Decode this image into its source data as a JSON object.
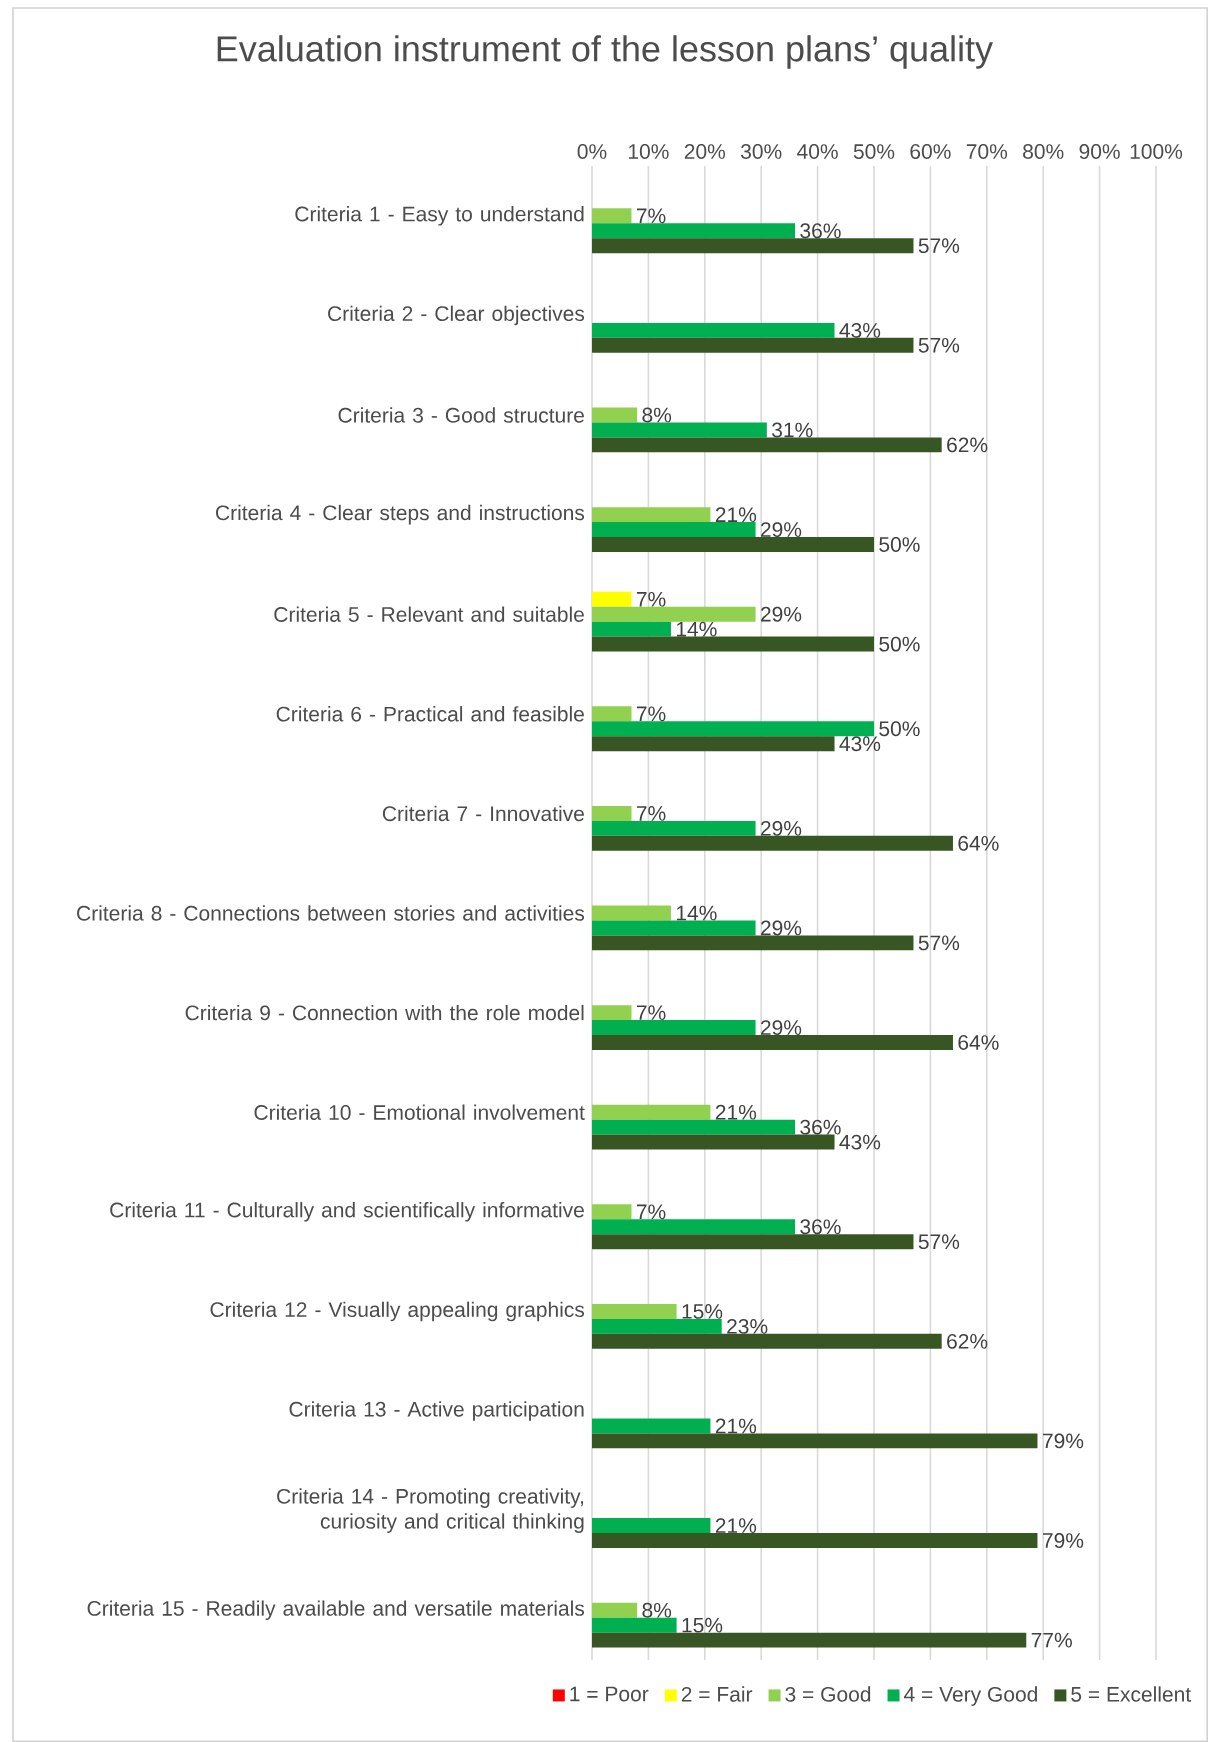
{
  "chart_data": {
    "type": "bar",
    "orientation": "horizontal",
    "title": "Evaluation instrument of the lesson plans’ quality",
    "categories": [
      "Criteria 1 - Easy to understand",
      "Criteria 2 - Clear objectives",
      "Criteria 3 - Good structure",
      "Criteria 4 - Clear steps and instructions",
      "Criteria 5 - Relevant and suitable",
      "Criteria 6 - Practical and feasible",
      "Criteria 7 - Innovative",
      "Criteria 8 - Connections between stories and activities",
      "Criteria 9 - Connection with the role model",
      "Criteria 10 - Emotional involvement",
      "Criteria 11 - Culturally and scientifically informative",
      "Criteria 12 - Visually appealing graphics",
      "Criteria 13 - Active participation",
      "Criteria 14 - Promoting creativity, curiosity and critical thinking",
      "Criteria 15 - Readily available and versatile materials"
    ],
    "series": [
      {
        "name": "1 = Poor",
        "color": "#ff0000",
        "values": [
          null,
          null,
          null,
          null,
          null,
          null,
          null,
          null,
          null,
          null,
          null,
          null,
          null,
          null,
          null
        ]
      },
      {
        "name": "2 = Fair",
        "color": "#ffff00",
        "values": [
          null,
          null,
          null,
          null,
          7,
          null,
          null,
          null,
          null,
          null,
          null,
          null,
          null,
          null,
          null
        ],
        "value_labels": [
          null,
          null,
          null,
          null,
          "7%",
          null,
          null,
          null,
          null,
          null,
          null,
          null,
          null,
          null,
          null
        ]
      },
      {
        "name": "3 = Good",
        "color": "#92d050",
        "values": [
          7,
          null,
          8,
          21,
          29,
          7,
          7,
          14,
          7,
          21,
          7,
          15,
          null,
          null,
          8
        ],
        "value_labels": [
          "7%",
          null,
          "8%",
          "21%",
          "29%",
          "7%",
          "7%",
          "14%",
          "7%",
          "21%",
          "7%",
          "15%",
          null,
          null,
          "8%"
        ]
      },
      {
        "name": "4 = Very Good",
        "color": "#00b050",
        "values": [
          36,
          43,
          31,
          29,
          14,
          50,
          29,
          29,
          29,
          36,
          36,
          23,
          21,
          21,
          15
        ],
        "value_labels": [
          "36%",
          "43%",
          "31%",
          "29%",
          "14%",
          "50%",
          "29%",
          "29%",
          "29%",
          "36%",
          "36%",
          "23%",
          "21%",
          "21%",
          "15%"
        ]
      },
      {
        "name": "5 = Excellent",
        "color": "#375623",
        "values": [
          57,
          57,
          62,
          50,
          50,
          43,
          64,
          57,
          64,
          43,
          57,
          62,
          79,
          79,
          77
        ],
        "value_labels": [
          "57%",
          "57%",
          "62%",
          "50%",
          "50%",
          "43%",
          "64%",
          "57%",
          "64%",
          "43%",
          "57%",
          "62%",
          "79%",
          "79%",
          "77%"
        ]
      }
    ],
    "xlim": [
      0,
      100
    ],
    "xticks": [
      {
        "value": 0,
        "label": "0%"
      },
      {
        "value": 10,
        "label": "10%"
      },
      {
        "value": 20,
        "label": "20%"
      },
      {
        "value": 30,
        "label": "30%"
      },
      {
        "value": 40,
        "label": "40%"
      },
      {
        "value": 50,
        "label": "50%"
      },
      {
        "value": 60,
        "label": "60%"
      },
      {
        "value": 70,
        "label": "70%"
      },
      {
        "value": 80,
        "label": "80%"
      },
      {
        "value": 90,
        "label": "90%"
      },
      {
        "value": 100,
        "label": "100%"
      }
    ],
    "grid": "x",
    "legend": "bottom"
  }
}
